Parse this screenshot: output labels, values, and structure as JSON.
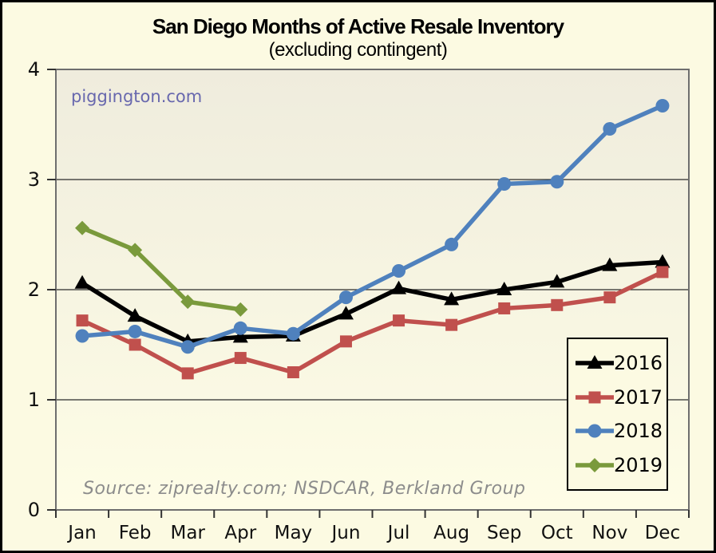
{
  "title": "San Diego Months of Active Resale Inventory",
  "subtitle": "(excluding contingent)",
  "watermark": "piggington.com",
  "source_note": "Source: ziprealty.com; NSDCAR, Berkland Group",
  "colors": {
    "page_background": "#FCFAE2",
    "plot_gradient_top": "#EFECDD",
    "plot_gradient_bottom": "#FEFDE6",
    "frame": "#6E6E6E",
    "gridline": "#2B2B2B",
    "tick": "#333333",
    "axis_text": "#111111",
    "watermark_text": "#6868AE",
    "source_text": "#8C8C8C",
    "series_2016": "#000000",
    "series_2017": "#C0504D",
    "series_2018": "#4F81BD",
    "series_2019": "#7A9A3C"
  },
  "chart_data": {
    "type": "line",
    "title": "San Diego Months of Active Resale Inventory",
    "subtitle": "(excluding contingent)",
    "xlabel": "",
    "ylabel": "",
    "categories": [
      "Jan",
      "Feb",
      "Mar",
      "Apr",
      "May",
      "Jun",
      "Jul",
      "Aug",
      "Sep",
      "Oct",
      "Nov",
      "Dec"
    ],
    "ylim": [
      0,
      4
    ],
    "yticks": [
      0,
      1,
      2,
      3,
      4
    ],
    "grid": "horizontal",
    "legend_position": "lower-right",
    "series": [
      {
        "name": "2016",
        "color": "#000000",
        "marker": "triangle",
        "values": [
          2.06,
          1.76,
          1.53,
          1.57,
          1.58,
          1.78,
          2.01,
          1.91,
          2.0,
          2.07,
          2.22,
          2.25
        ]
      },
      {
        "name": "2017",
        "color": "#C0504D",
        "marker": "square",
        "values": [
          1.72,
          1.5,
          1.24,
          1.38,
          1.25,
          1.53,
          1.72,
          1.68,
          1.83,
          1.86,
          1.93,
          2.16
        ]
      },
      {
        "name": "2018",
        "color": "#4F81BD",
        "marker": "circle",
        "values": [
          1.58,
          1.62,
          1.48,
          1.65,
          1.6,
          1.93,
          2.17,
          2.41,
          2.96,
          2.98,
          3.46,
          3.67
        ]
      },
      {
        "name": "2019",
        "color": "#7A9A3C",
        "marker": "diamond",
        "values": [
          2.56,
          2.36,
          1.89,
          1.82
        ]
      }
    ]
  }
}
